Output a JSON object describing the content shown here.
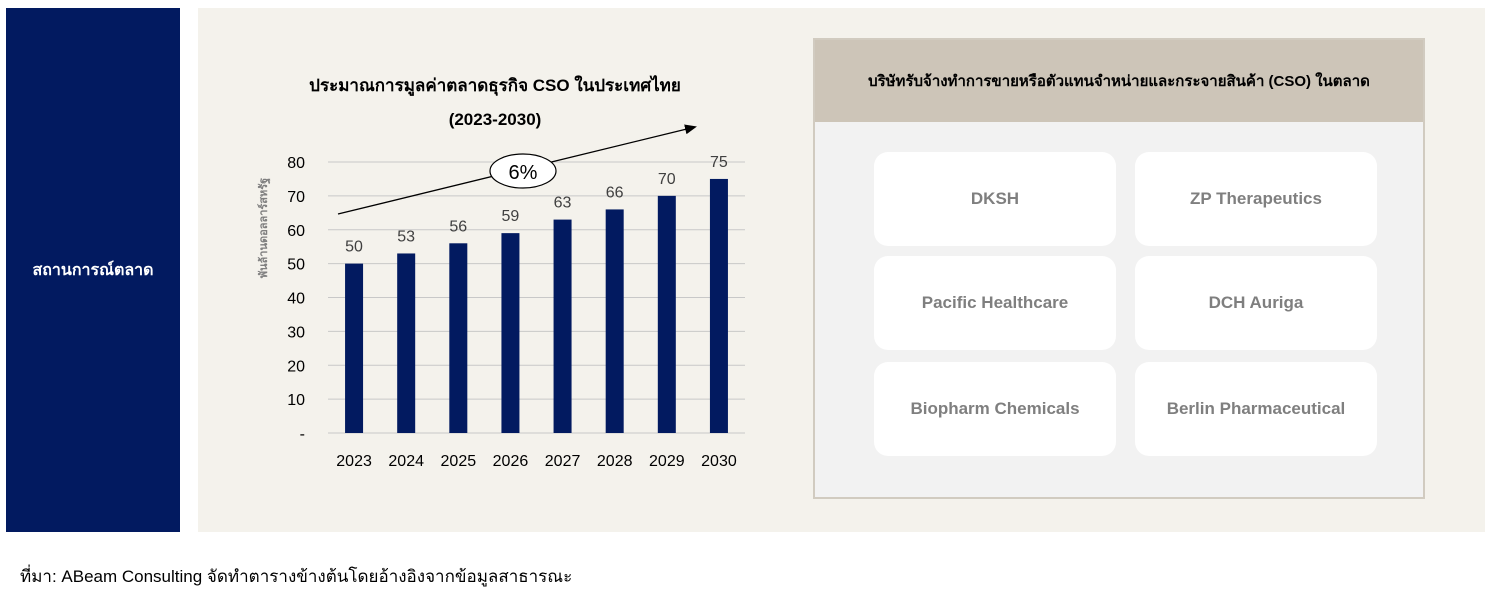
{
  "sidebar": {
    "label": "สถานการณ์ตลาด"
  },
  "chart_data": {
    "type": "bar",
    "title": "ประมาณการมูลค่าตลาดธุรกิจ CSO ในประเทศไทย",
    "subtitle": "(2023-2030)",
    "ylabel": "พันล้านดอลลาร์สหรัฐ",
    "categories": [
      "2023",
      "2024",
      "2025",
      "2026",
      "2027",
      "2028",
      "2029",
      "2030"
    ],
    "values": [
      50,
      53,
      56,
      59,
      63,
      66,
      70,
      75
    ],
    "data_labels": [
      "50",
      "53",
      "56",
      "59",
      "63",
      "66",
      "70",
      "75"
    ],
    "ylim": [
      0,
      80
    ],
    "yticks": [
      "-",
      "10",
      "20",
      "30",
      "40",
      "50",
      "60",
      "70",
      "80"
    ],
    "grid": true,
    "annotation": "6%",
    "color": "#021a60"
  },
  "cso_panel": {
    "title": "บริษัทรับจ้างทำการขายหรือตัวแทนจำหน่ายและกระจายสินค้า (CSO) ในตลาด",
    "companies": [
      "DKSH",
      "ZP Therapeutics",
      "Pacific Healthcare",
      "DCH Auriga",
      "Biopharm Chemicals",
      "Berlin Pharmaceutical"
    ]
  },
  "source": "ที่มา: ABeam Consulting จัดทำตารางข้างต้นโดยอ้างอิงจากข้อมูลสาธารณะ"
}
